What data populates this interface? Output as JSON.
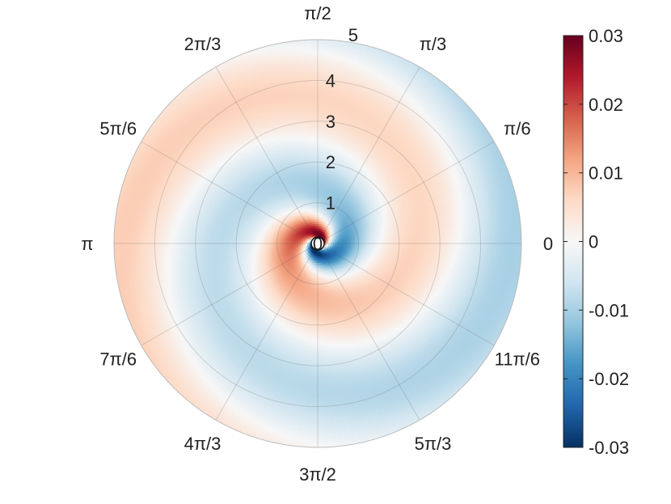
{
  "chart_data": {
    "type": "heatmap",
    "coordinate_system": "polar",
    "title": "",
    "radial_axis": {
      "range": [
        0,
        5
      ],
      "ticks": [
        0,
        1,
        2,
        3,
        4,
        5
      ],
      "tick_labels": [
        "0",
        "1",
        "2",
        "3",
        "4",
        "5"
      ]
    },
    "angular_axis": {
      "ticks_rad_over_pi": [
        0,
        0.16667,
        0.33333,
        0.5,
        0.66667,
        0.83333,
        1,
        1.16667,
        1.33333,
        1.5,
        1.66667,
        1.83333
      ],
      "tick_labels": [
        "0",
        "π/6",
        "π/3",
        "π/2",
        "2π/3",
        "5π/6",
        "π",
        "7π/6",
        "4π/3",
        "3π/2",
        "5π/3",
        "11π/6"
      ]
    },
    "grid": true,
    "colorbar": {
      "location": "right",
      "range": [
        -0.03,
        0.03
      ],
      "ticks": [
        -0.03,
        -0.02,
        -0.01,
        0,
        0.01,
        0.02,
        0.03
      ],
      "tick_labels": [
        "-0.03",
        "-0.02",
        "-0.01",
        "0",
        "0.01",
        "0.02",
        "0.03"
      ],
      "colormap": [
        "#053061",
        "#2166ac",
        "#4393c3",
        "#92c5de",
        "#d1e5f0",
        "#f7f7f7",
        "#fddbc7",
        "#f4a582",
        "#d6604d",
        "#b2182b",
        "#67001f"
      ]
    },
    "field_description": "two-armed spiral pattern; positive (red) arm and negative (blue) arm wind outward counter-clockwise",
    "field_samples": {
      "r": [
        0.3,
        0.6,
        1,
        2,
        3,
        4,
        5
      ],
      "theta_rad_over_pi": [
        0,
        0.5,
        1,
        1.5
      ],
      "values": [
        [
          -0.03,
          -0.015,
          0.025,
          0.028
        ],
        [
          -0.012,
          -0.004,
          0.012,
          0.018
        ],
        [
          -0.006,
          -0.003,
          0.008,
          0.01
        ],
        [
          -0.006,
          -0.004,
          0.004,
          0.006
        ],
        [
          -0.004,
          -0.003,
          0.006,
          -0.002
        ],
        [
          -0.006,
          -0.004,
          0.008,
          -0.004
        ],
        [
          -0.005,
          0.003,
          0.01,
          -0.006
        ]
      ]
    }
  }
}
